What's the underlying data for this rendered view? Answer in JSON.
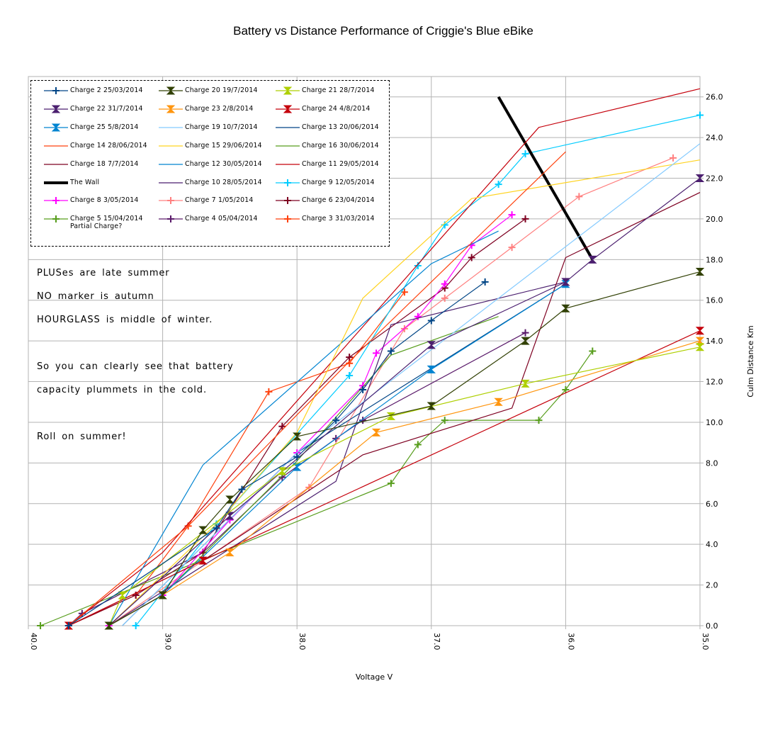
{
  "chart_data": {
    "type": "line",
    "title": "Battery vs Distance Performance of Criggie's Blue eBike",
    "xlabel": "Voltage V",
    "ylabel": "Culm Distance Km",
    "xlim": [
      40.0,
      35.0
    ],
    "x_reversed": true,
    "ylim": [
      0,
      27
    ],
    "xticks": [
      "40.0",
      "39.0",
      "38.0",
      "37.0",
      "36.0",
      "35.0"
    ],
    "yticks": [
      "0.0",
      "2.0",
      "4.0",
      "6.0",
      "8.0",
      "10.0",
      "12.0",
      "14.0",
      "16.0",
      "18.0",
      "20.0",
      "22.0",
      "24.0",
      "26.0"
    ],
    "y_axis_side": "right",
    "grid": true,
    "legend_placement": "top-left",
    "annotations": [
      "PLUSes are late summer",
      "NO marker is autumn",
      "HOURGLASS is middle of winter.",
      "So you can clearly see that battery",
      "capacity plummets in the cold.",
      "Roll on summer!"
    ],
    "series": [
      {
        "name": "Charge 2 25/03/2014",
        "color": "#004586",
        "marker": "plus",
        "points": [
          [
            39.7,
            0
          ],
          [
            38.6,
            4.8
          ],
          [
            38.41,
            6.7
          ],
          [
            38.0,
            8.3
          ],
          [
            37.71,
            10.1
          ],
          [
            37.51,
            11.6
          ],
          [
            37.3,
            13.5
          ],
          [
            37.0,
            15.0
          ],
          [
            36.6,
            16.9
          ]
        ]
      },
      {
        "name": "Charge 20  19/7/2014",
        "color": "#314004",
        "marker": "hourglass",
        "points": [
          [
            39.4,
            0
          ],
          [
            39.0,
            1.5
          ],
          [
            38.7,
            4.7
          ],
          [
            38.5,
            6.2
          ],
          [
            38.0,
            9.3
          ],
          [
            37.0,
            10.8
          ],
          [
            36.3,
            14.0
          ],
          [
            36.0,
            15.6
          ],
          [
            35.0,
            17.4
          ]
        ]
      },
      {
        "name": "Charge 21 28/7/2014",
        "color": "#aecf00",
        "marker": "hourglass",
        "points": [
          [
            39.4,
            0
          ],
          [
            39.3,
            1.5
          ],
          [
            38.11,
            7.6
          ],
          [
            37.3,
            10.3
          ],
          [
            36.3,
            11.9
          ],
          [
            35.0,
            13.7
          ]
        ]
      },
      {
        "name": "Charge 22 31/7/2014",
        "color": "#4b1f6f",
        "marker": "hourglass",
        "points": [
          [
            39.4,
            0
          ],
          [
            38.5,
            5.4
          ],
          [
            37.0,
            13.8
          ],
          [
            36.0,
            16.9
          ],
          [
            35.8,
            18.0
          ],
          [
            35.0,
            22.0
          ]
        ]
      },
      {
        "name": "Charge 23 2/8/2014",
        "color": "#ff950e",
        "marker": "hourglass",
        "points": [
          [
            39.4,
            0
          ],
          [
            39.0,
            1.5
          ],
          [
            38.5,
            3.6
          ],
          [
            37.41,
            9.5
          ],
          [
            36.5,
            11.0
          ],
          [
            35.0,
            14.0
          ]
        ]
      },
      {
        "name": "Charge 24 4/8/2014",
        "color": "#c5000b",
        "marker": "hourglass",
        "points": [
          [
            39.7,
            0
          ],
          [
            38.7,
            3.2
          ],
          [
            35.0,
            14.5
          ]
        ]
      },
      {
        "name": "Charge 25 5/8/2014",
        "color": "#0084d1",
        "marker": "hourglass",
        "points": [
          [
            39.4,
            0
          ],
          [
            39.0,
            1.5
          ],
          [
            38.0,
            7.8
          ],
          [
            37.0,
            12.6
          ],
          [
            36.0,
            16.8
          ]
        ]
      },
      {
        "name": "Charge 19  10/7/2014",
        "color": "#83caff",
        "marker": "none",
        "points": [
          [
            39.3,
            0
          ],
          [
            38.0,
            8.5
          ],
          [
            35.0,
            23.7
          ]
        ]
      },
      {
        "name": "Charge 13 20/06/2014",
        "color": "#004586",
        "marker": "none",
        "points": [
          [
            39.3,
            0
          ],
          [
            38.0,
            8.5
          ],
          [
            36.0,
            16.8
          ]
        ]
      },
      {
        "name": "Charge 14 28/06/2014",
        "color": "#ff420e",
        "marker": "none",
        "points": [
          [
            39.7,
            0
          ],
          [
            38.81,
            4.9
          ],
          [
            37.61,
            13.0
          ],
          [
            36.0,
            23.3
          ]
        ]
      },
      {
        "name": "Charge 15 29/06/2014",
        "color": "#ffd320",
        "marker": "none",
        "points": [
          [
            39.4,
            0
          ],
          [
            38.6,
            5.0
          ],
          [
            38.0,
            9.5
          ],
          [
            37.51,
            16.1
          ],
          [
            36.7,
            21.0
          ],
          [
            35.0,
            22.9
          ]
        ]
      },
      {
        "name": "Charge 16 30/06/2014",
        "color": "#579d1c",
        "marker": "none",
        "points": [
          [
            39.4,
            0
          ],
          [
            39.0,
            1.5
          ],
          [
            38.0,
            8.1
          ],
          [
            37.3,
            13.3
          ],
          [
            36.5,
            15.2
          ]
        ]
      },
      {
        "name": "Charge 18 7/7/2014",
        "color": "#7e0021",
        "marker": "none",
        "points": [
          [
            39.7,
            0
          ],
          [
            38.7,
            3.2
          ],
          [
            37.51,
            8.4
          ],
          [
            36.4,
            10.7
          ],
          [
            36.0,
            18.1
          ],
          [
            35.0,
            21.3
          ]
        ]
      },
      {
        "name": "Charge 12 30/05/2014",
        "color": "#0084d1",
        "marker": "none",
        "points": [
          [
            39.4,
            0
          ],
          [
            38.7,
            7.9
          ],
          [
            37.0,
            17.8
          ],
          [
            36.5,
            19.4
          ]
        ]
      },
      {
        "name": "Charge 11 29/05/2014",
        "color": "#c5000b",
        "marker": "none",
        "points": [
          [
            39.7,
            0
          ],
          [
            39.0,
            3.6
          ],
          [
            37.51,
            14.7
          ],
          [
            36.2,
            24.5
          ],
          [
            35.0,
            26.4
          ]
        ]
      },
      {
        "name": "The Wall",
        "color": "#000000",
        "marker": "none",
        "thick": true,
        "points": [
          [
            36.5,
            26.0
          ],
          [
            35.8,
            18.0
          ]
        ]
      },
      {
        "name": "Charge 10  28/05/2014",
        "color": "#4b1f6f",
        "marker": "none",
        "points": [
          [
            39.4,
            0
          ],
          [
            37.71,
            7.1
          ],
          [
            37.3,
            14.8
          ],
          [
            36.0,
            16.9
          ]
        ]
      },
      {
        "name": "Charge 9   12/05/2014",
        "color": "#00ccff",
        "marker": "plus",
        "points": [
          [
            39.2,
            0
          ],
          [
            38.6,
            5.0
          ],
          [
            37.61,
            12.3
          ],
          [
            37.1,
            17.7
          ],
          [
            36.9,
            19.7
          ],
          [
            36.5,
            21.7
          ],
          [
            36.3,
            23.2
          ],
          [
            35.0,
            25.1
          ]
        ]
      },
      {
        "name": "Charge 8  3/05/2014",
        "color": "#ff00ff",
        "marker": "plus",
        "points": [
          [
            39.4,
            0
          ],
          [
            39.0,
            1.5
          ],
          [
            38.5,
            5.2
          ],
          [
            38.0,
            8.5
          ],
          [
            37.51,
            11.8
          ],
          [
            37.41,
            13.4
          ],
          [
            37.1,
            15.2
          ],
          [
            36.9,
            16.8
          ],
          [
            36.7,
            18.7
          ],
          [
            36.4,
            20.2
          ]
        ]
      },
      {
        "name": "Charge 7   1/05/2014",
        "color": "#ff8080",
        "marker": "plus",
        "points": [
          [
            39.4,
            0
          ],
          [
            37.91,
            6.8
          ],
          [
            37.2,
            14.6
          ],
          [
            36.9,
            16.1
          ],
          [
            36.4,
            18.6
          ],
          [
            35.9,
            21.1
          ],
          [
            35.2,
            23.0
          ]
        ]
      },
      {
        "name": "Charge 6  23/04/2014",
        "color": "#7e0021",
        "marker": "plus",
        "points": [
          [
            39.7,
            0
          ],
          [
            39.2,
            1.5
          ],
          [
            38.7,
            3.6
          ],
          [
            38.11,
            9.8
          ],
          [
            37.61,
            13.2
          ],
          [
            36.9,
            16.6
          ],
          [
            36.7,
            18.1
          ],
          [
            36.3,
            20.0
          ]
        ]
      },
      {
        "name": "Charge 5  15/04/2014\nPartial Charge?",
        "color": "#579d1c",
        "marker": "plus",
        "points": [
          [
            39.91,
            0
          ],
          [
            37.3,
            7.0
          ],
          [
            37.1,
            8.9
          ],
          [
            36.9,
            10.1
          ],
          [
            36.2,
            10.1
          ],
          [
            36.0,
            11.6
          ],
          [
            35.8,
            13.5
          ]
        ]
      },
      {
        "name": "Charge 4 05/04/2014",
        "color": "#5a1a6a",
        "marker": "plus",
        "points": [
          [
            39.7,
            0
          ],
          [
            39.6,
            0.6
          ],
          [
            38.7,
            3.6
          ],
          [
            38.11,
            7.3
          ],
          [
            37.71,
            9.2
          ],
          [
            37.51,
            10.1
          ],
          [
            36.3,
            14.4
          ]
        ]
      },
      {
        "name": "Charge 3 31/03/2014",
        "color": "#ff420e",
        "marker": "plus",
        "points": [
          [
            39.7,
            0
          ],
          [
            39.2,
            1.5
          ],
          [
            38.81,
            4.9
          ],
          [
            38.21,
            11.5
          ],
          [
            37.61,
            12.9
          ],
          [
            37.2,
            16.4
          ]
        ]
      }
    ]
  }
}
